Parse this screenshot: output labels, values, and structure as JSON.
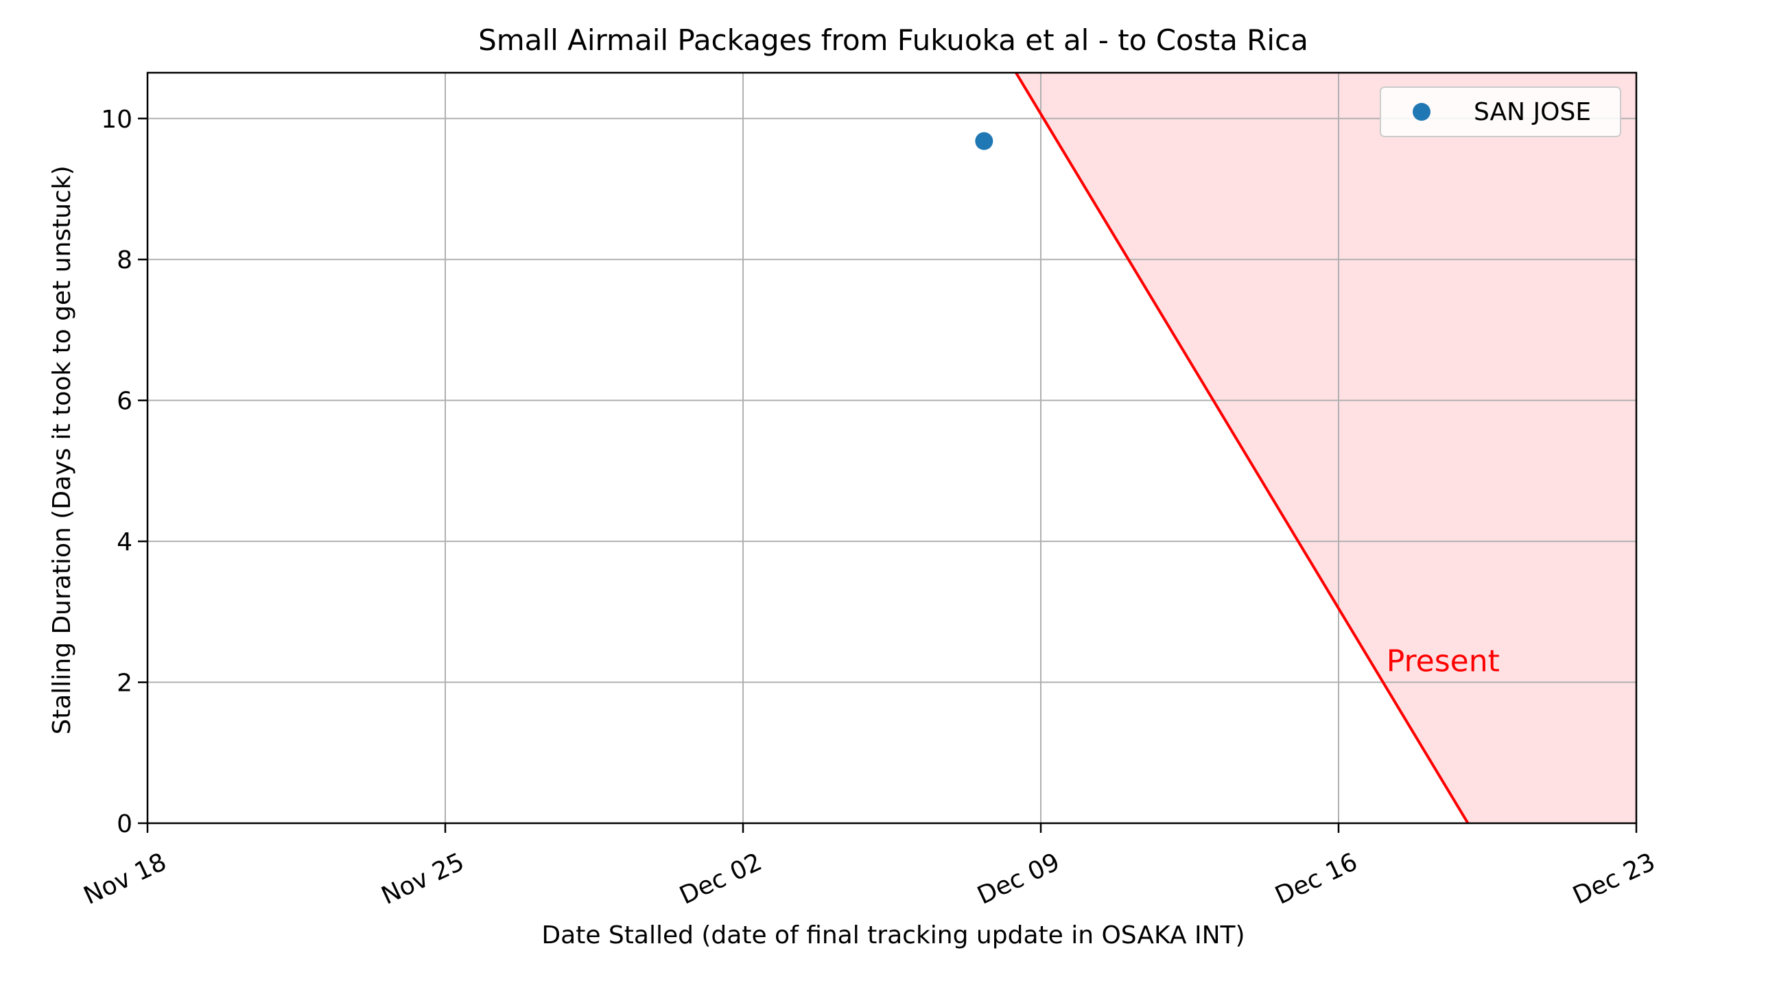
{
  "chart_data": {
    "type": "scatter",
    "title": "Small Airmail Packages from Fukuoka et al - to Costa Rica",
    "xlabel": "Date Stalled (date of final tracking update in OSAKA INT)",
    "ylabel": "Stalling Duration (Days it took to get unstuck)",
    "x_type": "date",
    "xlim": [
      "2023-11-18",
      "2023-12-23"
    ],
    "ylim": [
      0,
      10.65
    ],
    "x_ticks": [
      {
        "date": "2023-11-18",
        "label": "Nov 18"
      },
      {
        "date": "2023-11-25",
        "label": "Nov 25"
      },
      {
        "date": "2023-12-02",
        "label": "Dec 02"
      },
      {
        "date": "2023-12-09",
        "label": "Dec 09"
      },
      {
        "date": "2023-12-16",
        "label": "Dec 16"
      },
      {
        "date": "2023-12-23",
        "label": "Dec 23"
      }
    ],
    "y_ticks": [
      {
        "value": 0,
        "label": "0"
      },
      {
        "value": 2,
        "label": "2"
      },
      {
        "value": 4,
        "label": "4"
      },
      {
        "value": 6,
        "label": "6"
      },
      {
        "value": 8,
        "label": "8"
      },
      {
        "value": 10,
        "label": "10"
      }
    ],
    "grid": true,
    "legend_position": "top-right",
    "series": [
      {
        "name": "SAN JOSE",
        "color": "#1f77b4",
        "points": [
          {
            "x": "2023-12-07T16:00",
            "y": 9.68
          }
        ]
      }
    ],
    "present_line": {
      "label": "Present",
      "color": "#ff0000",
      "fill_color": "#ffe1e4",
      "from": {
        "x": "2023-12-08T10:00",
        "y": 10.65
      },
      "to": {
        "x": "2023-12-19T01:00",
        "y": 0
      }
    },
    "present_label_position": {
      "x": "2023-12-17T03:00",
      "y": 2.3
    }
  }
}
